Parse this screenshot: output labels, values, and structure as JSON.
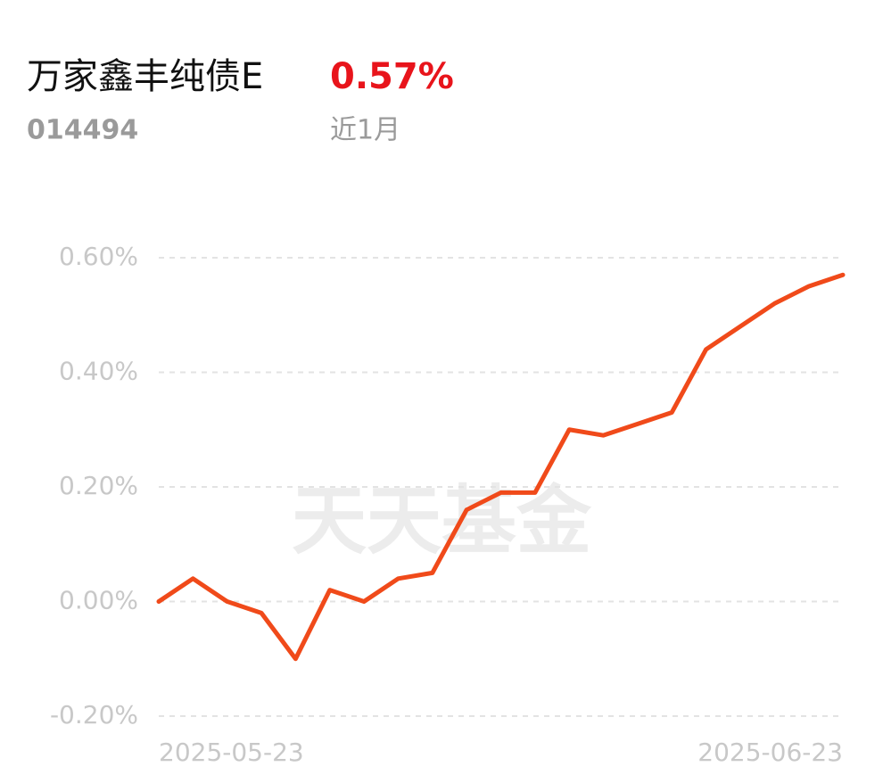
{
  "chart_data": {
    "type": "line",
    "title": "万家鑫丰纯债E",
    "code": "014494",
    "return_label": "0.57%",
    "period": "近1月",
    "watermark": "天天基金",
    "categories": [
      "2025-05-23",
      null,
      null,
      null,
      null,
      null,
      null,
      null,
      null,
      null,
      null,
      null,
      null,
      null,
      null,
      null,
      null,
      null,
      null,
      null,
      "2025-06-23"
    ],
    "series": [
      {
        "color": "#f04a1a",
        "values": [
          0.0,
          0.04,
          0.0,
          -0.02,
          -0.1,
          0.02,
          0.0,
          0.04,
          0.05,
          0.16,
          0.19,
          0.19,
          0.3,
          0.29,
          0.31,
          0.33,
          0.44,
          0.48,
          0.52,
          0.55,
          0.57
        ]
      }
    ],
    "ylim": [
      -0.2,
      0.6
    ],
    "yticks": [
      {
        "value": -0.2,
        "label": "-0.20%"
      },
      {
        "value": 0,
        "label": "0.00%"
      },
      {
        "value": 0.2,
        "label": "0.20%"
      },
      {
        "value": 0.4,
        "label": "0.40%"
      },
      {
        "value": 0.6,
        "label": "0.60%"
      }
    ],
    "grid": true
  }
}
